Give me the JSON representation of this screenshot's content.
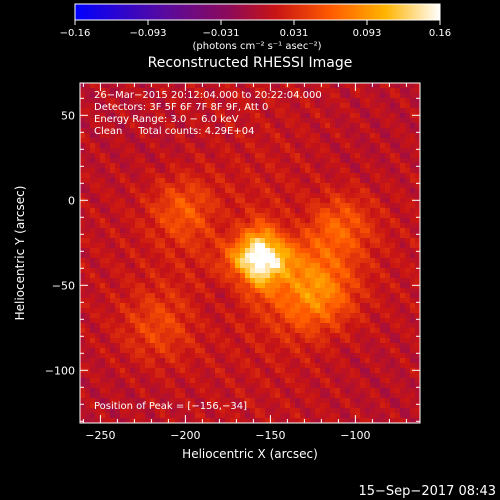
{
  "chart_data": {
    "type": "heatmap",
    "title": "Reconstructed RHESSI Image",
    "xlabel": "Heliocentric X (arcsec)",
    "ylabel": "Heliocentric Y (arcsec)",
    "xlim": [
      -262,
      -62
    ],
    "ylim": [
      -131,
      69
    ],
    "xticks": [
      -250,
      -200,
      -150,
      -100
    ],
    "xtick_labels": [
      "−250",
      "−200",
      "−150",
      "−100"
    ],
    "yticks": [
      50,
      0,
      -50,
      -100
    ],
    "ytick_labels": [
      "50",
      "0",
      "−50",
      "−100"
    ],
    "colorbar": {
      "range": [
        -0.16,
        0.16
      ],
      "tick_labels": [
        "−0.16",
        "−0.093",
        "−0.031",
        "0.031",
        "0.093",
        "0.16"
      ],
      "unit_label": "(photons cm⁻² s⁻¹ asec⁻²)",
      "colormap": "blue-purple-red-orange-yellow-white"
    },
    "annotations": [
      "26−Mar−2015 20:12:04.000 to 20:22:04.000",
      "Detectors: 3F 5F 6F 7F 8F 9F, Att 0",
      "Energy Range: 3.0 − 6.0 keV",
      "Clean     Total counts: 4.29E+04"
    ],
    "peak_label": "Position of Peak = [−156,−34]",
    "peak": {
      "x": -156,
      "y": -34,
      "value": 0.16
    },
    "sources": [
      {
        "x": -156,
        "y": -34,
        "amp": 0.16
      },
      {
        "x": -125,
        "y": -55,
        "amp": 0.085
      },
      {
        "x": -200,
        "y": -5,
        "amp": 0.05
      },
      {
        "x": -110,
        "y": -15,
        "amp": 0.05
      },
      {
        "x": -215,
        "y": -75,
        "amp": 0.04
      }
    ],
    "grid": false
  },
  "footer": {
    "timestamp": "15−Sep−2017 08:43"
  }
}
